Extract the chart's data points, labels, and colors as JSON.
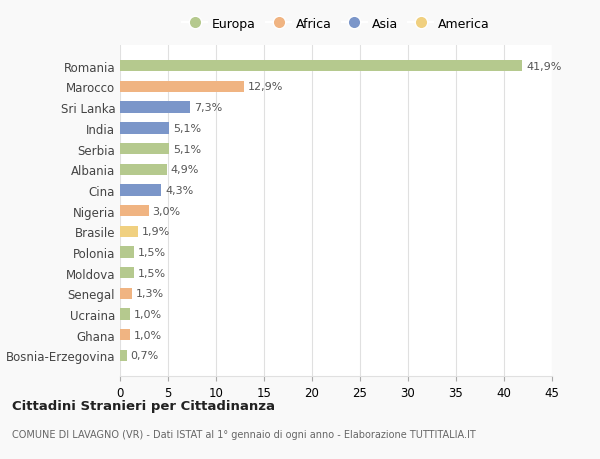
{
  "categories": [
    "Romania",
    "Marocco",
    "Sri Lanka",
    "India",
    "Serbia",
    "Albania",
    "Cina",
    "Nigeria",
    "Brasile",
    "Polonia",
    "Moldova",
    "Senegal",
    "Ucraina",
    "Ghana",
    "Bosnia-Erzegovina"
  ],
  "values": [
    41.9,
    12.9,
    7.3,
    5.1,
    5.1,
    4.9,
    4.3,
    3.0,
    1.9,
    1.5,
    1.5,
    1.3,
    1.0,
    1.0,
    0.7
  ],
  "labels": [
    "41,9%",
    "12,9%",
    "7,3%",
    "5,1%",
    "5,1%",
    "4,9%",
    "4,3%",
    "3,0%",
    "1,9%",
    "1,5%",
    "1,5%",
    "1,3%",
    "1,0%",
    "1,0%",
    "0,7%"
  ],
  "continent": [
    "Europa",
    "Africa",
    "Asia",
    "Asia",
    "Europa",
    "Europa",
    "Asia",
    "Africa",
    "America",
    "Europa",
    "Europa",
    "Africa",
    "Europa",
    "Africa",
    "Europa"
  ],
  "colors": {
    "Europa": "#b5c98e",
    "Africa": "#f0b482",
    "Asia": "#7b96c9",
    "America": "#f0d080"
  },
  "legend_order": [
    "Europa",
    "Africa",
    "Asia",
    "America"
  ],
  "title": "Cittadini Stranieri per Cittadinanza",
  "subtitle": "COMUNE DI LAVAGNO (VR) - Dati ISTAT al 1° gennaio di ogni anno - Elaborazione TUTTITALIA.IT",
  "xlim": [
    0,
    45
  ],
  "xticks": [
    0,
    5,
    10,
    15,
    20,
    25,
    30,
    35,
    40,
    45
  ],
  "bg_color": "#f9f9f9",
  "plot_bg_color": "#ffffff",
  "grid_color": "#e0e0e0",
  "label_color": "#555555",
  "bar_label_color": "#555555"
}
